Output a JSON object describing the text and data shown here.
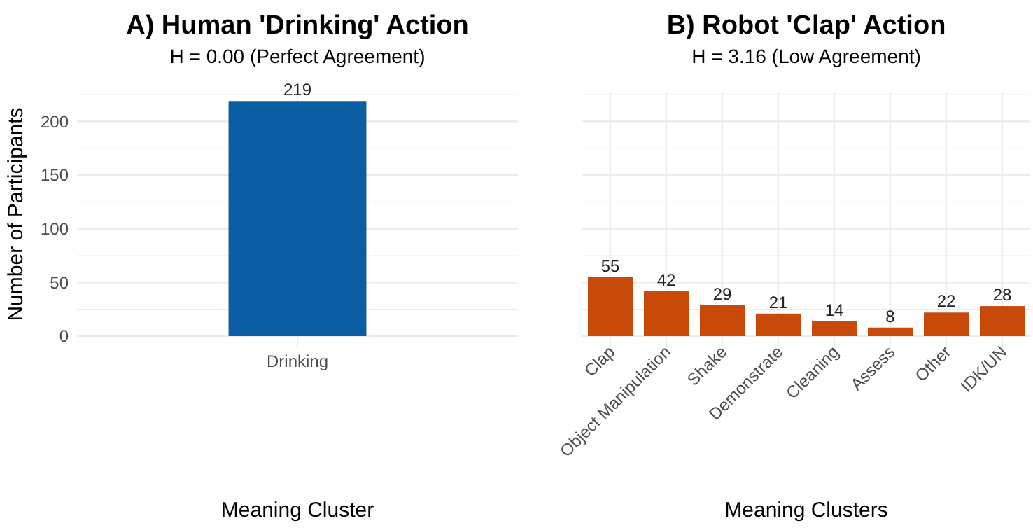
{
  "chart_data": [
    {
      "type": "bar",
      "title": "A) Human 'Drinking' Action",
      "subtitle": "H = 0.00 (Perfect Agreement)",
      "xlabel": "Meaning Cluster",
      "ylabel": "Number of Participants",
      "categories": [
        "Drinking"
      ],
      "values": [
        219
      ],
      "color": "#0b5ea3",
      "data_labels": true,
      "ylim": [
        0,
        227
      ],
      "yticks": [
        0,
        {
          "value": 25,
          "label": null
        },
        50,
        {
          "value": 75,
          "label": null
        },
        100,
        {
          "value": 125,
          "label": null
        },
        150,
        {
          "value": 175,
          "label": null
        },
        200,
        {
          "value": 225,
          "label": null
        }
      ],
      "grid": true
    },
    {
      "type": "bar",
      "title": "B) Robot 'Clap' Action",
      "subtitle": "H = 3.16 (Low Agreement)",
      "xlabel": "Meaning Clusters",
      "categories": [
        "Clap",
        "Object Manipulation",
        "Shake",
        "Demonstrate",
        "Cleaning",
        "Assess",
        "Other",
        "IDK/UN"
      ],
      "values": [
        55,
        42,
        29,
        21,
        14,
        8,
        22,
        28
      ],
      "color": "#c94a08",
      "data_labels": true,
      "ylim": [
        0,
        227
      ],
      "yticks": [
        0,
        {
          "value": 25,
          "label": null
        },
        50,
        {
          "value": 75,
          "label": null
        },
        100,
        {
          "value": 125,
          "label": null
        },
        150,
        {
          "value": 175,
          "label": null
        },
        200,
        {
          "value": 225,
          "label": null
        }
      ],
      "grid": true,
      "tick_labels": "x"
    }
  ]
}
